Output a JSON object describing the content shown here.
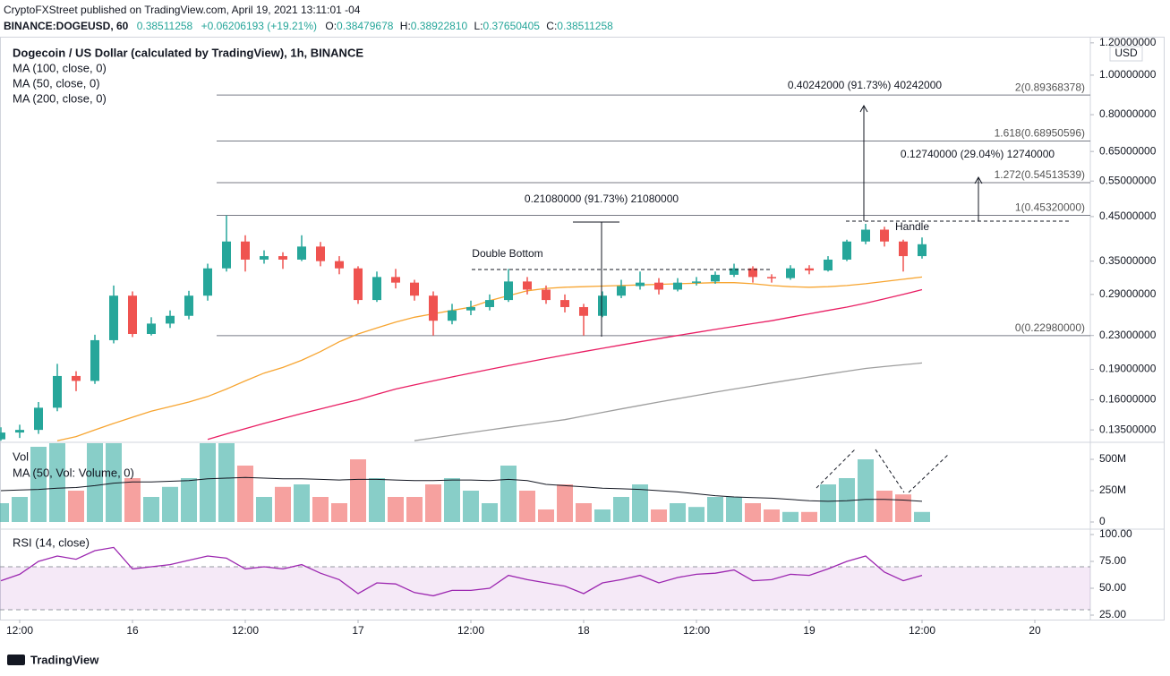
{
  "header": {
    "published": "CryptoFXStreet published on TradingView.com, April 19, 2021 13:11:01 -04",
    "symbol": "BINANCE:DOGEUSD, 60",
    "price": "0.38511258",
    "change": "+0.06206193 (+19.21%)",
    "ohlc": [
      {
        "label": "O:",
        "value": "0.38479678"
      },
      {
        "label": "H:",
        "value": "0.38922810"
      },
      {
        "label": "L:",
        "value": "0.37650405"
      },
      {
        "label": "C:",
        "value": "0.38511258"
      }
    ],
    "currency": "USD"
  },
  "chart_data": [
    {
      "type": "candlestick",
      "title": "Dogecoin / US Dollar (calculated by TradingView), 1h, BINANCE",
      "log_scale": true,
      "up_color": "#26a69a",
      "down_color": "#ef5350",
      "ylim": [
        0.1265,
        1.236
      ],
      "yticks": [
        {
          "value": 1.2,
          "label": "1.20000000"
        },
        {
          "value": 1,
          "label": "1.00000000"
        },
        {
          "value": 0.8,
          "label": "0.80000000"
        },
        {
          "value": 0.65,
          "label": "0.65000000"
        },
        {
          "value": 0.55,
          "label": "0.55000000"
        },
        {
          "value": 0.45,
          "label": "0.45000000"
        },
        {
          "value": 0.35,
          "label": "0.35000000"
        },
        {
          "value": 0.29,
          "label": "0.29000000"
        },
        {
          "value": 0.23,
          "label": "0.23000000"
        },
        {
          "value": 0.19,
          "label": "0.19000000"
        },
        {
          "value": 0.16,
          "label": "0.16000000"
        },
        {
          "value": 0.135,
          "label": "0.13500000"
        }
      ],
      "open": [
        0.128,
        0.133,
        0.135,
        0.153,
        0.183,
        0.178,
        0.224,
        0.288,
        0.232,
        0.246,
        0.257,
        0.288,
        0.336,
        0.391,
        0.353,
        0.36,
        0.353,
        0.38,
        0.35,
        0.336,
        0.281,
        0.32,
        0.31,
        0.288,
        0.25,
        0.265,
        0.27,
        0.281,
        0.312,
        0.298,
        0.281,
        0.27,
        0.257,
        0.288,
        0.304,
        0.31,
        0.298,
        0.31,
        0.312,
        0.324,
        0.336,
        0.32,
        0.318,
        0.336,
        0.332,
        0.353,
        0.391,
        0.418,
        0.391,
        0.36,
        null,
        null,
        null,
        null,
        null,
        null,
        null,
        null
      ],
      "high": [
        0.137,
        0.139,
        0.158,
        0.196,
        0.188,
        0.231,
        0.305,
        0.295,
        0.255,
        0.265,
        0.296,
        0.345,
        0.453,
        0.405,
        0.372,
        0.368,
        0.405,
        0.39,
        0.36,
        0.34,
        0.33,
        0.335,
        0.315,
        0.295,
        0.275,
        0.28,
        0.29,
        0.335,
        0.32,
        0.305,
        0.29,
        0.275,
        0.295,
        0.315,
        0.33,
        0.318,
        0.318,
        0.32,
        0.33,
        0.345,
        0.34,
        0.325,
        0.342,
        0.342,
        0.36,
        0.395,
        0.432,
        0.425,
        0.395,
        0.4,
        null,
        null,
        null,
        null,
        null,
        null,
        null,
        null
      ],
      "low": [
        0.127,
        0.129,
        0.132,
        0.15,
        0.168,
        0.175,
        0.22,
        0.228,
        0.23,
        0.24,
        0.252,
        0.28,
        0.33,
        0.33,
        0.345,
        0.335,
        0.35,
        0.34,
        0.325,
        0.275,
        0.278,
        0.3,
        0.28,
        0.23,
        0.245,
        0.258,
        0.265,
        0.278,
        0.29,
        0.275,
        0.262,
        0.23,
        0.255,
        0.284,
        0.298,
        0.29,
        0.295,
        0.305,
        0.308,
        0.32,
        0.31,
        0.31,
        0.315,
        0.325,
        0.33,
        0.35,
        0.385,
        0.38,
        0.33,
        0.355,
        null,
        null,
        null,
        null,
        null,
        null,
        null,
        null
      ],
      "close": [
        0.133,
        0.135,
        0.153,
        0.183,
        0.178,
        0.224,
        0.288,
        0.232,
        0.246,
        0.257,
        0.288,
        0.336,
        0.391,
        0.353,
        0.36,
        0.353,
        0.38,
        0.35,
        0.336,
        0.281,
        0.32,
        0.31,
        0.288,
        0.25,
        0.265,
        0.27,
        0.281,
        0.312,
        0.298,
        0.281,
        0.27,
        0.257,
        0.288,
        0.304,
        0.31,
        0.298,
        0.31,
        0.312,
        0.324,
        0.336,
        0.32,
        0.318,
        0.336,
        0.332,
        0.353,
        0.391,
        0.418,
        0.391,
        0.36,
        0.385,
        null,
        null,
        null,
        null,
        null,
        null,
        null,
        null
      ],
      "series": [
        {
          "name": "MA (100, close, 0)",
          "color": "#e91e63",
          "values": [
            null,
            null,
            null,
            null,
            null,
            null,
            null,
            null,
            null,
            null,
            null,
            0.128,
            0.132,
            0.136,
            0.14,
            0.144,
            0.148,
            0.152,
            0.156,
            0.16,
            0.165,
            0.17,
            0.174,
            0.178,
            0.182,
            0.186,
            0.19,
            0.194,
            0.198,
            0.202,
            0.206,
            0.21,
            0.214,
            0.218,
            0.222,
            0.226,
            0.23,
            0.234,
            0.238,
            0.242,
            0.246,
            0.25,
            0.255,
            0.26,
            0.265,
            0.27,
            0.276,
            0.283,
            0.29,
            0.298,
            null,
            null,
            null,
            null,
            null,
            null,
            null,
            null
          ]
        },
        {
          "name": "MA (50, close, 0)",
          "color": "#f7a531",
          "values": [
            null,
            null,
            null,
            0.127,
            0.13,
            0.135,
            0.14,
            0.145,
            0.15,
            0.154,
            0.158,
            0.163,
            0.17,
            0.178,
            0.186,
            0.192,
            0.2,
            0.21,
            0.222,
            0.232,
            0.24,
            0.248,
            0.255,
            0.26,
            0.265,
            0.27,
            0.28,
            0.288,
            0.296,
            0.3,
            0.302,
            0.303,
            0.304,
            0.305,
            0.306,
            0.307,
            0.308,
            0.309,
            0.31,
            0.31,
            0.308,
            0.305,
            0.303,
            0.302,
            0.303,
            0.305,
            0.308,
            0.312,
            0.316,
            0.32,
            null,
            null,
            null,
            null,
            null,
            null,
            null,
            null
          ]
        },
        {
          "name": "MA (200, close, 0)",
          "color": "#9e9e9e",
          "values": [
            null,
            null,
            null,
            null,
            null,
            null,
            null,
            null,
            null,
            null,
            null,
            null,
            null,
            null,
            null,
            null,
            null,
            null,
            null,
            null,
            null,
            null,
            0.127,
            0.129,
            0.131,
            0.133,
            0.135,
            0.137,
            0.139,
            0.141,
            0.143,
            0.146,
            0.149,
            0.152,
            0.155,
            0.158,
            0.161,
            0.164,
            0.167,
            0.17,
            0.173,
            0.176,
            0.179,
            0.182,
            0.185,
            0.188,
            0.191,
            0.193,
            0.195,
            0.197,
            null,
            null,
            null,
            null,
            null,
            null,
            null,
            null
          ]
        }
      ],
      "levels": [
        {
          "value": 0.89368378,
          "label": "2(0.89368378)"
        },
        {
          "value": 0.68950596,
          "label": "1.618(0.68950596)"
        },
        {
          "value": 0.54513539,
          "label": "1.272(0.54513539)"
        },
        {
          "value": 0.4532,
          "label": "1(0.45320000)"
        },
        {
          "value": 0.2298,
          "label": "0(0.22980000)"
        }
      ],
      "annotations": {
        "measures": [
          "0.21080000 (91.73%) 21080000",
          "0.12740000 (29.04%) 12740000",
          "0.40242000 (91.73%) 40242000"
        ],
        "double_bottom": "Double Bottom",
        "handle": "Handle"
      }
    },
    {
      "type": "bar",
      "title": "Vol",
      "ylim": [
        0,
        636000000
      ],
      "yticks": [
        {
          "value": 500000000,
          "label": "500M"
        },
        {
          "value": 250000000,
          "label": "250M"
        },
        0
      ],
      "values": [
        150000000,
        200000000,
        600000000,
        640000000,
        250000000,
        640000000,
        640000000,
        350000000,
        200000000,
        280000000,
        350000000,
        640000000,
        640000000,
        450000000,
        200000000,
        280000000,
        300000000,
        200000000,
        150000000,
        500000000,
        350000000,
        200000000,
        200000000,
        300000000,
        350000000,
        250000000,
        150000000,
        450000000,
        250000000,
        100000000,
        300000000,
        150000000,
        100000000,
        200000000,
        300000000,
        100000000,
        150000000,
        120000000,
        200000000,
        200000000,
        150000000,
        100000000,
        80000000,
        80000000,
        300000000,
        350000000,
        500000000,
        250000000,
        220000000,
        80000000,
        null,
        null,
        null,
        null,
        null,
        null,
        null,
        null
      ],
      "series": [
        {
          "name": "MA (50, Vol: Volume, 0)",
          "color": "#131722",
          "values": [
            250000000,
            255000000,
            260000000,
            270000000,
            275000000,
            290000000,
            310000000,
            320000000,
            320000000,
            325000000,
            330000000,
            345000000,
            350000000,
            355000000,
            350000000,
            345000000,
            345000000,
            340000000,
            335000000,
            340000000,
            340000000,
            335000000,
            330000000,
            330000000,
            335000000,
            335000000,
            330000000,
            340000000,
            330000000,
            300000000,
            290000000,
            280000000,
            270000000,
            265000000,
            260000000,
            250000000,
            240000000,
            225000000,
            210000000,
            200000000,
            195000000,
            190000000,
            180000000,
            170000000,
            165000000,
            170000000,
            180000000,
            180000000,
            175000000,
            165000000,
            null,
            null,
            null,
            null,
            null,
            null,
            null,
            null
          ]
        }
      ]
    },
    {
      "type": "line",
      "title": "RSI (14, close)",
      "color": "#9c27b0",
      "band": [
        30,
        70
      ],
      "ylim": [
        22,
        105
      ],
      "yticks": [
        {
          "value": 100,
          "label": "100.00"
        },
        {
          "value": 75,
          "label": "75.00"
        },
        {
          "value": 50,
          "label": "50.00"
        },
        {
          "value": 25,
          "label": "25.00"
        }
      ],
      "categories": [
        null,
        "12:00",
        null,
        null,
        null,
        null,
        null,
        "16",
        null,
        null,
        null,
        null,
        null,
        "12:00",
        null,
        null,
        null,
        null,
        null,
        "17",
        null,
        null,
        null,
        null,
        null,
        "12:00",
        null,
        null,
        null,
        null,
        null,
        "18",
        null,
        null,
        null,
        null,
        null,
        "12:00",
        null,
        null,
        null,
        null,
        null,
        "19",
        null,
        null,
        null,
        null,
        null,
        "12:00",
        null,
        null,
        null,
        null,
        null,
        "20",
        null,
        null
      ],
      "values": [
        57,
        63,
        75,
        80,
        77,
        85,
        88,
        68,
        70,
        72,
        76,
        80,
        78,
        68,
        70,
        68,
        72,
        64,
        58,
        45,
        55,
        54,
        46,
        43,
        48,
        48,
        50,
        62,
        58,
        55,
        52,
        45,
        55,
        58,
        62,
        55,
        60,
        63,
        64,
        67,
        57,
        58,
        63,
        62,
        68,
        75,
        80,
        65,
        57,
        62,
        null,
        null,
        null,
        null,
        null,
        null,
        null,
        null
      ]
    }
  ],
  "footer": {
    "brand": "TradingView"
  }
}
